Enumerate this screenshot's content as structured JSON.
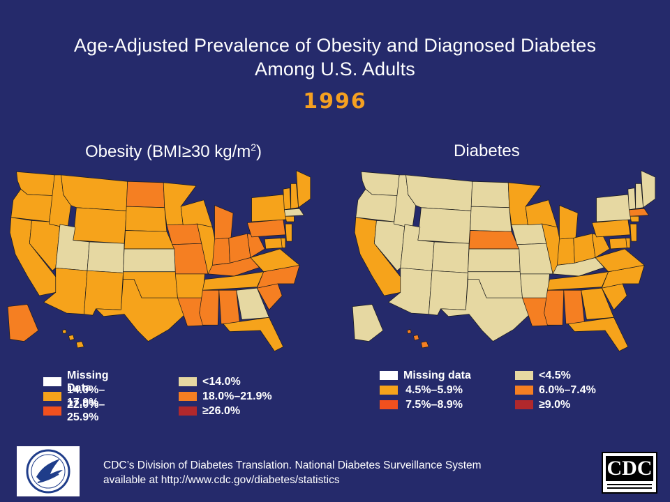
{
  "slide": {
    "title_line1": "Age-Adjusted Prevalence of Obesity and Diagnosed Diabetes",
    "title_line2": "Among U.S. Adults",
    "year": "1996"
  },
  "maps": {
    "obesity": {
      "title_main": "Obesity (BMI≥30 kg/m",
      "title_sup": "2",
      "title_close": ")",
      "legend": [
        {
          "label": "Missing Data",
          "color": "#ffffff"
        },
        {
          "label": "<14.0%",
          "color": "#e6d8a2"
        },
        {
          "label": "14.0%–17.9%",
          "color": "#f6a31b"
        },
        {
          "label": "18.0%–21.9%",
          "color": "#f57f22"
        },
        {
          "label": "22.0%–25.9%",
          "color": "#f1501e"
        },
        {
          "label": "≥26.0%",
          "color": "#b1282c"
        }
      ],
      "state_classes": {
        "WA": "14.0%–17.9%",
        "OR": "14.0%–17.9%",
        "CA": "14.0%–17.9%",
        "NV": "14.0%–17.9%",
        "ID": "14.0%–17.9%",
        "MT": "14.0%–17.9%",
        "WY": "14.0%–17.9%",
        "UT": "<14.0%",
        "CO": "<14.0%",
        "AZ": "14.0%–17.9%",
        "NM": "14.0%–17.9%",
        "ND": "18.0%–21.9%",
        "SD": "14.0%–17.9%",
        "NE": "14.0%–17.9%",
        "KS": "<14.0%",
        "OK": "14.0%–17.9%",
        "TX": "14.0%–17.9%",
        "MN": "14.0%–17.9%",
        "IA": "18.0%–21.9%",
        "MO": "18.0%–21.9%",
        "AR": "14.0%–17.9%",
        "LA": "18.0%–21.9%",
        "WI": "14.0%–17.9%",
        "IL": "14.0%–17.9%",
        "MI": "18.0%–21.9%",
        "IN": "18.0%–21.9%",
        "OH": "18.0%–21.9%",
        "KY": "18.0%–21.9%",
        "TN": "14.0%–17.9%",
        "MS": "18.0%–21.9%",
        "AL": "18.0%–21.9%",
        "GA": "<14.0%",
        "FL": "14.0%–17.9%",
        "SC": "18.0%–21.9%",
        "NC": "18.0%–21.9%",
        "VA": "14.0%–17.9%",
        "WV": "18.0%–21.9%",
        "PA": "18.0%–21.9%",
        "NY": "14.0%–17.9%",
        "VT": "14.0%–17.9%",
        "NH": "14.0%–17.9%",
        "ME": "14.0%–17.9%",
        "MA": "<14.0%",
        "CT": "14.0%–17.9%",
        "NJ": "14.0%–17.9%",
        "DE": "14.0%–17.9%",
        "MD": "14.0%–17.9%",
        "AK": "18.0%–21.9%",
        "HI": "14.0%–17.9%"
      }
    },
    "diabetes": {
      "title": "Diabetes",
      "legend": [
        {
          "label": "Missing data",
          "color": "#ffffff"
        },
        {
          "label": "<4.5%",
          "color": "#e6d8a2"
        },
        {
          "label": "4.5%–5.9%",
          "color": "#f6a31b"
        },
        {
          "label": "6.0%–7.4%",
          "color": "#f57f22"
        },
        {
          "label": "7.5%–8.9%",
          "color": "#f1501e"
        },
        {
          "label": "≥9.0%",
          "color": "#b1282c"
        }
      ],
      "state_classes": {
        "WA": "<4.5%",
        "OR": "<4.5%",
        "CA": "4.5%–5.9%",
        "NV": "<4.5%",
        "ID": "<4.5%",
        "MT": "<4.5%",
        "WY": "<4.5%",
        "UT": "<4.5%",
        "CO": "<4.5%",
        "AZ": "<4.5%",
        "NM": "<4.5%",
        "ND": "<4.5%",
        "SD": "<4.5%",
        "NE": "6.0%–7.4%",
        "KS": "<4.5%",
        "OK": "<4.5%",
        "TX": "<4.5%",
        "MN": "4.5%–5.9%",
        "IA": "<4.5%",
        "MO": "<4.5%",
        "AR": "<4.5%",
        "LA": "6.0%–7.4%",
        "WI": "4.5%–5.9%",
        "IL": "4.5%–5.9%",
        "MI": "4.5%–5.9%",
        "IN": "4.5%–5.9%",
        "OH": "4.5%–5.9%",
        "KY": "<4.5%",
        "TN": "4.5%–5.9%",
        "MS": "6.0%–7.4%",
        "AL": "6.0%–7.4%",
        "GA": "4.5%–5.9%",
        "FL": "4.5%–5.9%",
        "SC": "4.5%–5.9%",
        "NC": "4.5%–5.9%",
        "VA": "4.5%–5.9%",
        "WV": "4.5%–5.9%",
        "PA": "4.5%–5.9%",
        "NY": "<4.5%",
        "VT": "<4.5%",
        "NH": "<4.5%",
        "ME": "<4.5%",
        "MA": "6.0%–7.4%",
        "CT": "4.5%–5.9%",
        "NJ": "4.5%–5.9%",
        "DE": "4.5%–5.9%",
        "MD": "4.5%–5.9%",
        "AK": "<4.5%",
        "HI": "6.0%–7.4%"
      }
    }
  },
  "footer": {
    "source_line1": "CDC’s Division of Diabetes Translation. National Diabetes Surveillance System",
    "source_line2": "available at http://www.cdc.gov/diabetes/statistics",
    "cdc_logo_text": "CDC"
  }
}
